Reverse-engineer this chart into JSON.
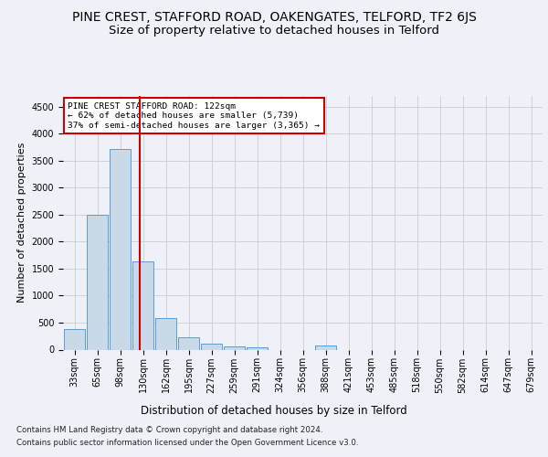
{
  "title": "PINE CREST, STAFFORD ROAD, OAKENGATES, TELFORD, TF2 6JS",
  "subtitle": "Size of property relative to detached houses in Telford",
  "xlabel": "Distribution of detached houses by size in Telford",
  "ylabel": "Number of detached properties",
  "footer_line1": "Contains HM Land Registry data © Crown copyright and database right 2024.",
  "footer_line2": "Contains public sector information licensed under the Open Government Licence v3.0.",
  "bin_labels": [
    "33sqm",
    "65sqm",
    "98sqm",
    "130sqm",
    "162sqm",
    "195sqm",
    "227sqm",
    "259sqm",
    "291sqm",
    "324sqm",
    "356sqm",
    "388sqm",
    "421sqm",
    "453sqm",
    "485sqm",
    "518sqm",
    "550sqm",
    "582sqm",
    "614sqm",
    "647sqm",
    "679sqm"
  ],
  "bar_values": [
    375,
    2500,
    3720,
    1630,
    590,
    230,
    105,
    60,
    35,
    0,
    0,
    75,
    0,
    0,
    0,
    0,
    0,
    0,
    0,
    0,
    0
  ],
  "bar_color": "#c9d9e8",
  "bar_edge_color": "#5b9bd5",
  "grid_color": "#cccccc",
  "vline_x_index": 2.85,
  "vline_color": "#cc0000",
  "annotation_text": "PINE CREST STAFFORD ROAD: 122sqm\n← 62% of detached houses are smaller (5,739)\n37% of semi-detached houses are larger (3,365) →",
  "annotation_box_color": "#cc0000",
  "ylim": [
    0,
    4700
  ],
  "yticks": [
    0,
    500,
    1000,
    1500,
    2000,
    2500,
    3000,
    3500,
    4000,
    4500
  ],
  "bg_color": "#eef2f8",
  "plot_bg_color": "#eef2f8",
  "title_fontsize": 10,
  "subtitle_fontsize": 9.5,
  "axis_label_fontsize": 8.5,
  "tick_fontsize": 7,
  "ylabel_fontsize": 8
}
